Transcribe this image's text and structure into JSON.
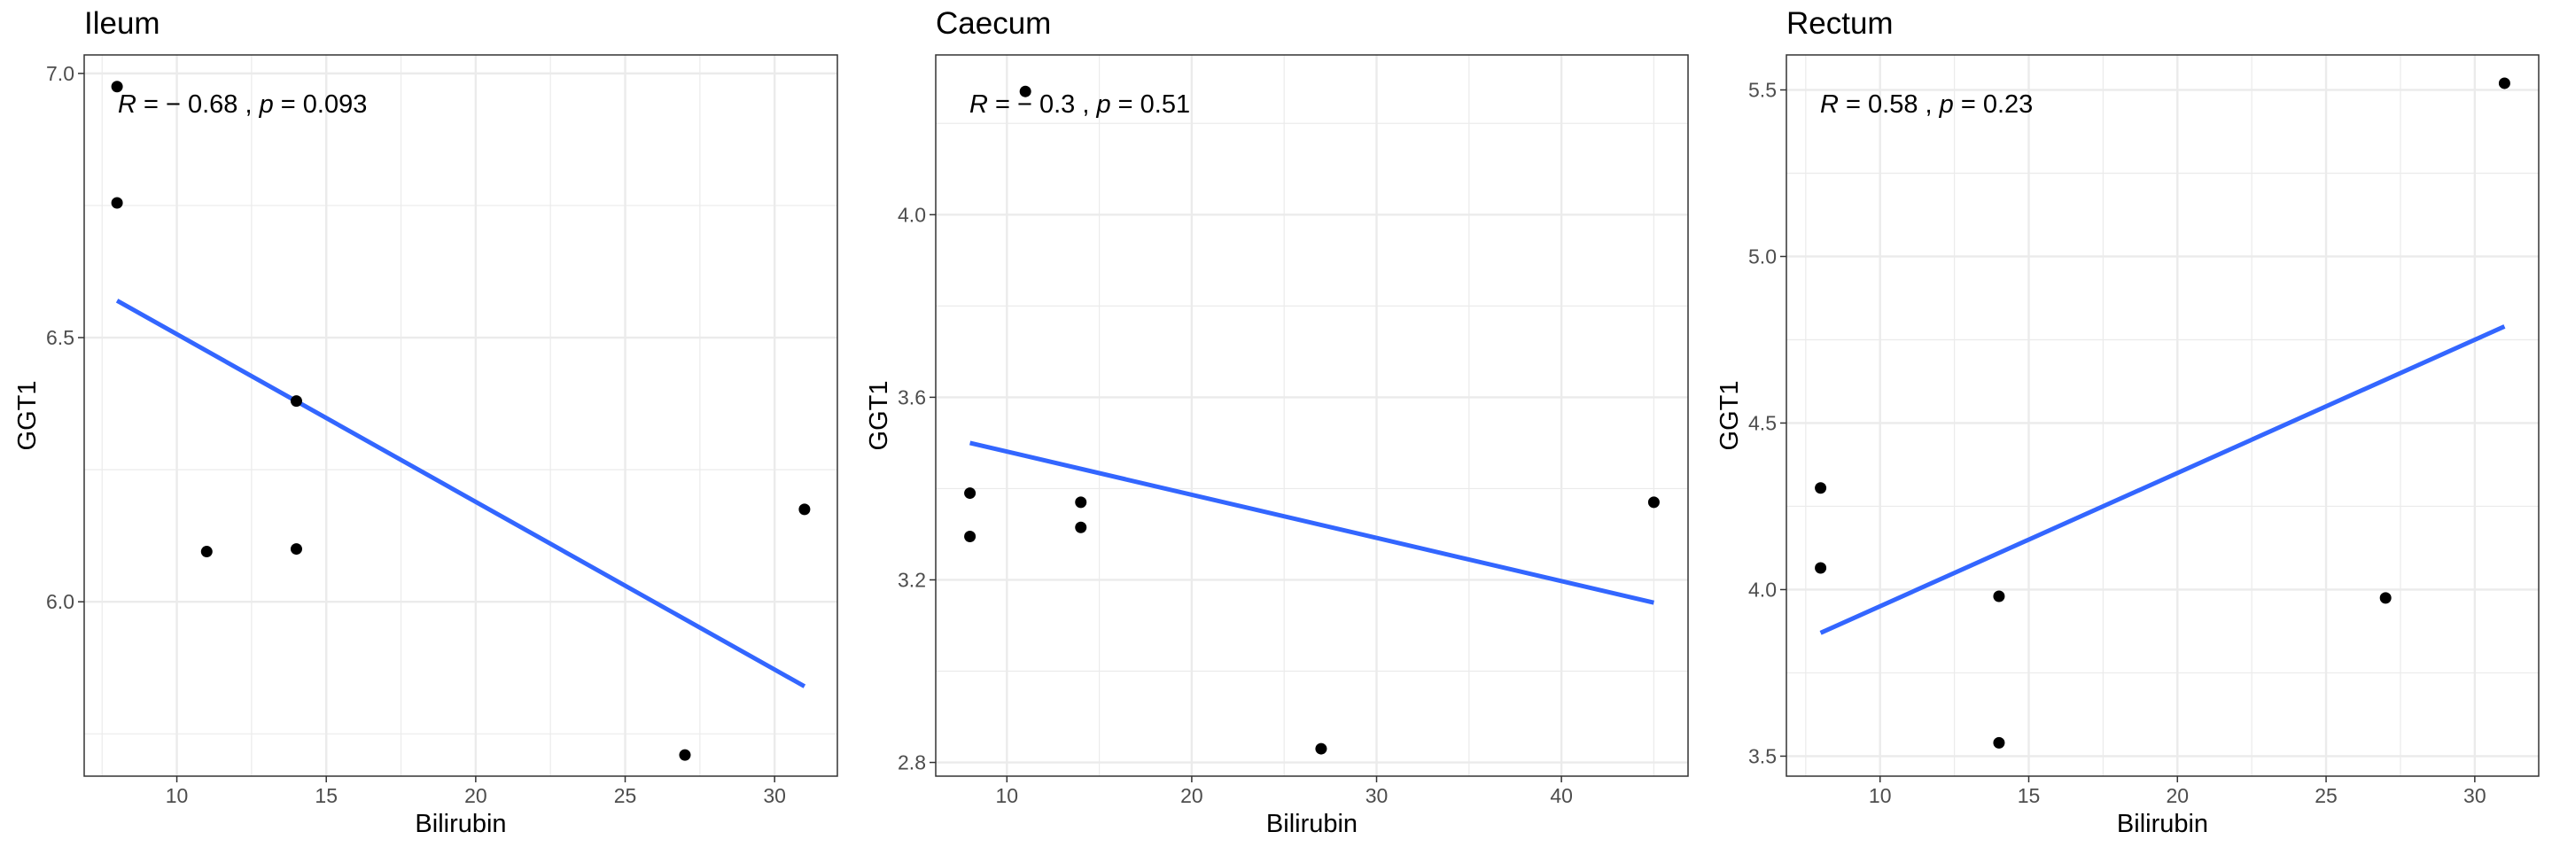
{
  "chart_data": [
    {
      "type": "scatter",
      "title": "Ileum",
      "xlabel": "Bilirubin",
      "ylabel": "GGT1",
      "annotation": {
        "r_label": "R",
        "r_value": "= − 0.68 ,",
        "p_label": "p",
        "p_value": "= 0.093"
      },
      "xlim": [
        6.9,
        32.1
      ],
      "ylim": [
        5.67,
        7.035
      ],
      "xticks": [
        10,
        15,
        20,
        25,
        30
      ],
      "yticks": [
        6.0,
        6.5,
        7.0
      ],
      "ytick_labels": [
        "6.0",
        "6.5",
        "7.0"
      ],
      "points": [
        {
          "x": 8,
          "y": 6.975
        },
        {
          "x": 8,
          "y": 6.755
        },
        {
          "x": 11,
          "y": 6.095
        },
        {
          "x": 14,
          "y": 6.38
        },
        {
          "x": 14,
          "y": 6.1
        },
        {
          "x": 27,
          "y": 5.71
        },
        {
          "x": 31,
          "y": 6.175
        }
      ],
      "fit_line": {
        "x": [
          8,
          31
        ],
        "y": [
          6.57,
          5.84
        ]
      },
      "grid": true,
      "point_color": "#000000",
      "line_color": "#3366FF"
    },
    {
      "type": "scatter",
      "title": "Caecum",
      "xlabel": "Bilirubin",
      "ylabel": "GGT1",
      "annotation": {
        "r_label": "R",
        "r_value": "= − 0.3 ,",
        "p_label": "p",
        "p_value": "= 0.51"
      },
      "xlim": [
        6.15,
        46.85
      ],
      "ylim": [
        2.77,
        4.35
      ],
      "xticks": [
        10,
        20,
        30,
        40
      ],
      "yticks": [
        2.8,
        3.2,
        3.6,
        4.0
      ],
      "ytick_labels": [
        "2.8",
        "3.2",
        "3.6",
        "4.0"
      ],
      "points": [
        {
          "x": 8,
          "y": 3.39
        },
        {
          "x": 8,
          "y": 3.295
        },
        {
          "x": 11,
          "y": 4.27
        },
        {
          "x": 14,
          "y": 3.37
        },
        {
          "x": 14,
          "y": 3.315
        },
        {
          "x": 27,
          "y": 2.83
        },
        {
          "x": 45,
          "y": 3.37
        }
      ],
      "fit_line": {
        "x": [
          8,
          45
        ],
        "y": [
          3.5,
          3.15
        ]
      },
      "grid": true,
      "point_color": "#000000",
      "line_color": "#3366FF"
    },
    {
      "type": "scatter",
      "title": "Rectum",
      "xlabel": "Bilirubin",
      "ylabel": "GGT1",
      "annotation": {
        "r_label": "R",
        "r_value": "= 0.58 ,",
        "p_label": "p",
        "p_value": "= 0.23"
      },
      "xlim": [
        6.85,
        32.15
      ],
      "ylim": [
        3.44,
        5.605
      ],
      "xticks": [
        10,
        15,
        20,
        25,
        30
      ],
      "yticks": [
        3.5,
        4.0,
        4.5,
        5.0,
        5.5
      ],
      "ytick_labels": [
        "3.5",
        "4.0",
        "4.5",
        "5.0",
        "5.5"
      ],
      "points": [
        {
          "x": 8,
          "y": 4.305
        },
        {
          "x": 8,
          "y": 4.065
        },
        {
          "x": 14,
          "y": 3.98
        },
        {
          "x": 14,
          "y": 3.54
        },
        {
          "x": 27,
          "y": 3.975
        },
        {
          "x": 31,
          "y": 5.52
        }
      ],
      "fit_line": {
        "x": [
          8,
          31
        ],
        "y": [
          3.87,
          4.79
        ]
      },
      "grid": true,
      "point_color": "#000000",
      "line_color": "#3366FF"
    }
  ]
}
